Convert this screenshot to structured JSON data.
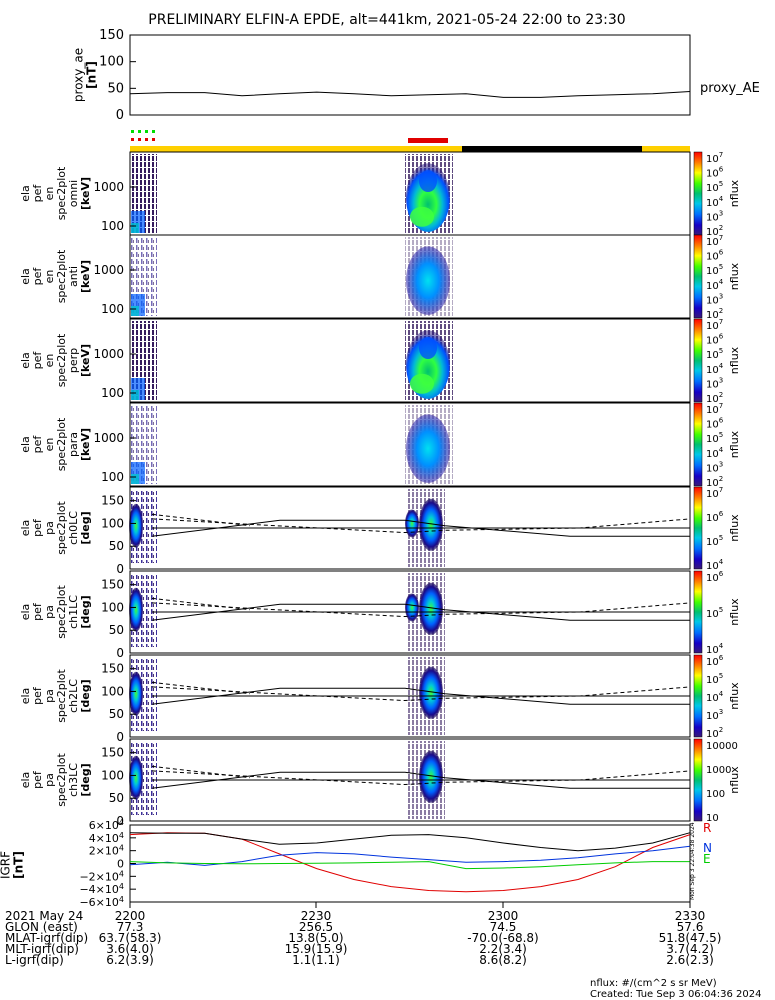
{
  "title": "PRELIMINARY ELFIN-A EPDE, alt=441km, 2021-05-24 22:00 to 23:30",
  "colors": {
    "orbit_bar": "#ffd000",
    "shadow_bar": "#000000",
    "science_bar": "#e00000",
    "dots_green": "#00dd00",
    "dots_red": "#e00000",
    "line_R": "#e00000",
    "line_N": "#0033dd",
    "line_E": "#00cc00",
    "axis": "#000000"
  },
  "proxy_ae": {
    "ylabel": "proxy_ae\n[nT]",
    "legend": "proxy_AE",
    "yticks": [
      "150",
      "100",
      "50",
      "0"
    ],
    "chart_data": {
      "type": "line",
      "x": [
        "22:00",
        "22:06",
        "22:12",
        "22:18",
        "22:24",
        "22:30",
        "22:36",
        "22:42",
        "22:48",
        "22:54",
        "23:00",
        "23:06",
        "23:12",
        "23:18",
        "23:24",
        "23:30"
      ],
      "values": [
        40,
        42,
        42,
        36,
        40,
        43,
        40,
        36,
        38,
        40,
        33,
        33,
        36,
        38,
        40,
        44
      ],
      "ylim": [
        0,
        150
      ]
    }
  },
  "spectrograms": [
    {
      "label": "ela\npef\nen\nspec2plot\nomni\n[keV]",
      "yticks": [
        "1000",
        "100"
      ],
      "colorbar_ticks": [
        "10^7",
        "10^6",
        "10^5",
        "10^4",
        "10^3",
        "10^2"
      ],
      "colorbar_label": "nflux"
    },
    {
      "label": "ela\npef\nen\nspec2plot\nanti\n[keV]",
      "yticks": [
        "1000",
        "100"
      ],
      "colorbar_ticks": [
        "10^7",
        "10^6",
        "10^5",
        "10^4",
        "10^3",
        "10^2"
      ],
      "colorbar_label": "nflux"
    },
    {
      "label": "ela\npef\nen\nspec2plot\nperp\n[keV]",
      "yticks": [
        "1000",
        "100"
      ],
      "colorbar_ticks": [
        "10^7",
        "10^6",
        "10^5",
        "10^4",
        "10^3",
        "10^2"
      ],
      "colorbar_label": "nflux"
    },
    {
      "label": "ela\npef\nen\nspec2plot\npara\n[keV]",
      "yticks": [
        "1000",
        "100"
      ],
      "colorbar_ticks": [
        "10^7",
        "10^6",
        "10^5",
        "10^4",
        "10^3",
        "10^2"
      ],
      "colorbar_label": "nflux"
    }
  ],
  "pitch_angle_panels": [
    {
      "label": "ela\npef\npa\nspec2plot\nch0LC\n[deg]",
      "yticks": [
        "150",
        "100",
        "50",
        "0"
      ],
      "colorbar_ticks": [
        "10^7",
        "10^6",
        "10^5",
        "10^4"
      ],
      "colorbar_label": "nflux"
    },
    {
      "label": "ela\npef\npa\nspec2plot\nch1LC\n[deg]",
      "yticks": [
        "150",
        "100",
        "50",
        "0"
      ],
      "colorbar_ticks": [
        "10^6",
        "10^5",
        "10^4"
      ],
      "colorbar_label": "nflux"
    },
    {
      "label": "ela\npef\npa\nspec2plot\nch2LC\n[deg]",
      "yticks": [
        "150",
        "100",
        "50",
        "0"
      ],
      "colorbar_ticks": [
        "10^6",
        "10^5",
        "10^4",
        "10^3",
        "10^2"
      ],
      "colorbar_label": "nflux"
    },
    {
      "label": "ela\npef\npa\nspec2plot\nch3LC\n[deg]",
      "yticks": [
        "150",
        "100",
        "50",
        "0"
      ],
      "colorbar_ticks": [
        "10000",
        "1000",
        "100",
        "10"
      ],
      "colorbar_label": "nflux"
    }
  ],
  "igrf": {
    "ylabel": "IGRF\n[nT]",
    "yticks": [
      "6×10^4",
      "4×10^4",
      "2×10^4",
      "0",
      "−2×10^4",
      "−4×10^4",
      "−6×10^4"
    ],
    "side_text": "Mon Sep 3 22:04:38 2024",
    "chart_data": {
      "type": "line",
      "x": [
        "22:00",
        "22:06",
        "22:12",
        "22:18",
        "22:24",
        "22:30",
        "22:36",
        "22:42",
        "22:48",
        "22:54",
        "23:00",
        "23:06",
        "23:12",
        "23:18",
        "23:24",
        "23:30"
      ],
      "ylim": [
        -60000,
        60000
      ],
      "series": [
        {
          "name": "R",
          "values": [
            45000,
            48000,
            47000,
            38000,
            15000,
            -8000,
            -25000,
            -36000,
            -42000,
            -44000,
            -42000,
            -36000,
            -25000,
            -5000,
            25000,
            45000
          ]
        },
        {
          "name": "N",
          "values": [
            -2000,
            2000,
            -3000,
            3000,
            13000,
            17000,
            15000,
            10000,
            6000,
            2000,
            3000,
            5000,
            9000,
            15000,
            20000,
            27000
          ]
        },
        {
          "name": "E",
          "values": [
            3000,
            1000,
            0,
            -500,
            0,
            500,
            1000,
            2000,
            3000,
            -8000,
            -7000,
            -5000,
            -2000,
            1000,
            3000,
            3000
          ]
        },
        {
          "name": "",
          "values": [
            48000,
            47000,
            47000,
            38000,
            30000,
            32000,
            38000,
            44000,
            45000,
            40000,
            32000,
            25000,
            20000,
            24000,
            32000,
            48000
          ]
        }
      ]
    }
  },
  "time_axis": {
    "rows": [
      {
        "label": "2021 May 24",
        "values": [
          "2200",
          "2230",
          "2300",
          "2330"
        ]
      },
      {
        "label": "GLON (east)",
        "values": [
          "77.3",
          "256.5",
          "74.5",
          "57.6"
        ]
      },
      {
        "label": "MLAT-igrf(dip)",
        "values": [
          "63.7(58.3)",
          "13.8(5.0)",
          "-70.0(-68.8)",
          "51.8(47.5)"
        ]
      },
      {
        "label": "MLT-igrf(dip)",
        "values": [
          "3.6(4.0)",
          "15.9(15.9)",
          "2.2(3.4)",
          "3.7(4.2)"
        ]
      },
      {
        "label": "L-igrf(dip)",
        "values": [
          "6.2(3.9)",
          "1.1(1.1)",
          "8.6(8.2)",
          "2.6(2.3)"
        ]
      }
    ]
  },
  "footer": {
    "units": "nflux: #/(cm^2 s sr MeV)",
    "created": "Created: Tue Sep  3 06:04:36 2024"
  }
}
